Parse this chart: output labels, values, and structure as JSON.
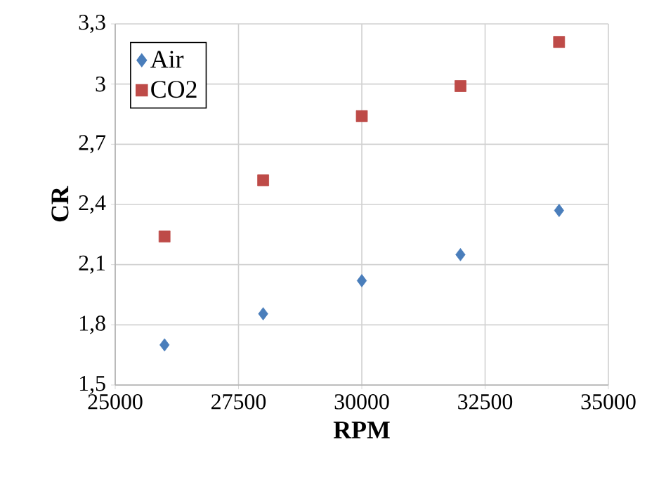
{
  "chart_data": {
    "type": "scatter",
    "xlabel": "RPM",
    "ylabel": "CR",
    "x": [
      26000,
      28000,
      30000,
      32000,
      34000
    ],
    "series": [
      {
        "name": "Air",
        "color": "#4a7ebb",
        "marker": "diamond",
        "values": [
          1.7,
          1.855,
          2.02,
          2.15,
          2.37
        ]
      },
      {
        "name": "CO2",
        "color": "#be4b48",
        "marker": "square",
        "values": [
          2.24,
          2.52,
          2.84,
          2.99,
          3.21
        ]
      }
    ],
    "xlim": [
      25000,
      35000
    ],
    "xticks": [
      25000,
      27500,
      30000,
      32500,
      35000
    ],
    "ylim": [
      1.5,
      3.3
    ],
    "yticks": [
      {
        "value": 1.5,
        "label": "1,5"
      },
      {
        "value": 1.8,
        "label": "1,8"
      },
      {
        "value": 2.1,
        "label": "2,1"
      },
      {
        "value": 2.4,
        "label": "2,4"
      },
      {
        "value": 2.7,
        "label": "2,7"
      },
      3,
      {
        "value": 3.3,
        "label": "3,3"
      }
    ],
    "grid": true,
    "legend": "top left"
  }
}
